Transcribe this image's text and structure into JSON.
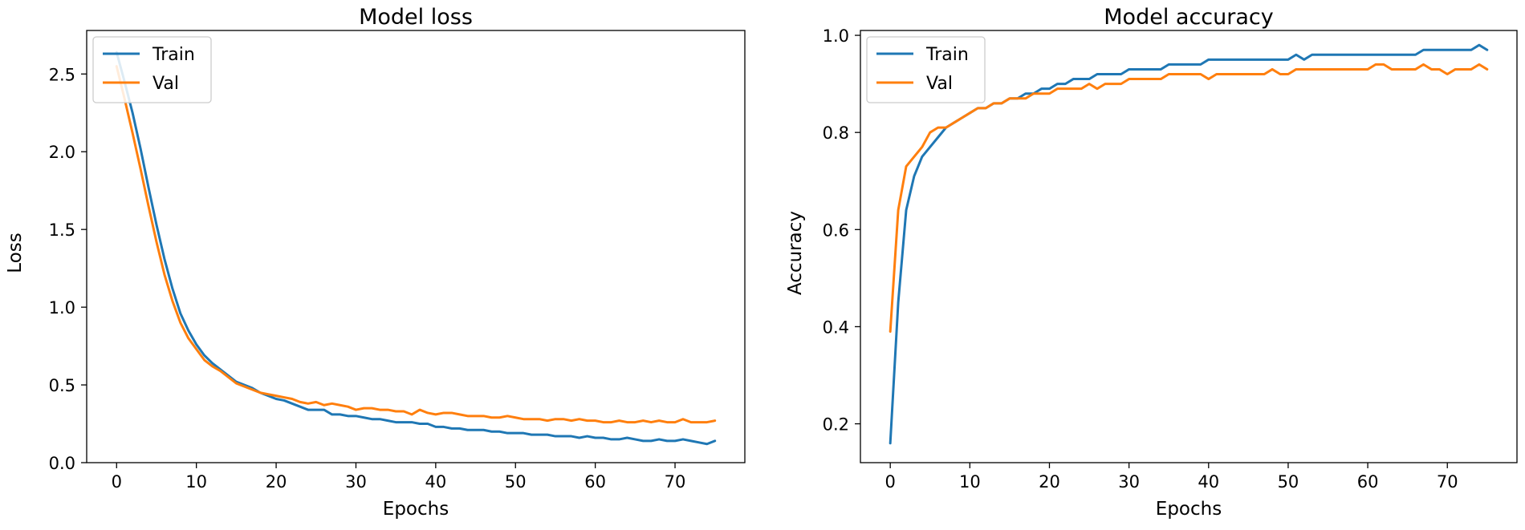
{
  "chart_data": [
    {
      "type": "line",
      "title": "Model loss",
      "xlabel": "Epochs",
      "ylabel": "Loss",
      "xlim": [
        -3.75,
        78.75
      ],
      "ylim": [
        0,
        2.78
      ],
      "xticks": [
        0,
        10,
        20,
        30,
        40,
        50,
        60,
        70
      ],
      "yticks": [
        0.0,
        0.5,
        1.0,
        1.5,
        2.0,
        2.5
      ],
      "xtick_labels": [
        "0",
        "10",
        "20",
        "30",
        "40",
        "50",
        "60",
        "70"
      ],
      "ytick_labels": [
        "0.0",
        "0.5",
        "1.0",
        "1.5",
        "2.0",
        "2.5"
      ],
      "legend_position": "upper left",
      "series": [
        {
          "name": "Train",
          "color": "#1f77b4",
          "values": [
            2.64,
            2.45,
            2.25,
            2.02,
            1.77,
            1.53,
            1.31,
            1.12,
            0.96,
            0.85,
            0.76,
            0.69,
            0.64,
            0.6,
            0.56,
            0.52,
            0.5,
            0.48,
            0.45,
            0.43,
            0.41,
            0.4,
            0.38,
            0.36,
            0.34,
            0.34,
            0.34,
            0.31,
            0.31,
            0.3,
            0.3,
            0.29,
            0.28,
            0.28,
            0.27,
            0.26,
            0.26,
            0.26,
            0.25,
            0.25,
            0.23,
            0.23,
            0.22,
            0.22,
            0.21,
            0.21,
            0.21,
            0.2,
            0.2,
            0.19,
            0.19,
            0.19,
            0.18,
            0.18,
            0.18,
            0.17,
            0.17,
            0.17,
            0.16,
            0.17,
            0.16,
            0.16,
            0.15,
            0.15,
            0.16,
            0.15,
            0.14,
            0.14,
            0.15,
            0.14,
            0.14,
            0.15,
            0.14,
            0.13,
            0.12,
            0.14
          ]
        },
        {
          "name": "Val",
          "color": "#ff7f0e",
          "values": [
            2.55,
            2.34,
            2.12,
            1.89,
            1.65,
            1.42,
            1.21,
            1.04,
            0.9,
            0.8,
            0.73,
            0.66,
            0.62,
            0.59,
            0.55,
            0.51,
            0.49,
            0.47,
            0.45,
            0.44,
            0.43,
            0.42,
            0.41,
            0.39,
            0.38,
            0.39,
            0.37,
            0.38,
            0.37,
            0.36,
            0.34,
            0.35,
            0.35,
            0.34,
            0.34,
            0.33,
            0.33,
            0.31,
            0.34,
            0.32,
            0.31,
            0.32,
            0.32,
            0.31,
            0.3,
            0.3,
            0.3,
            0.29,
            0.29,
            0.3,
            0.29,
            0.28,
            0.28,
            0.28,
            0.27,
            0.28,
            0.28,
            0.27,
            0.28,
            0.27,
            0.27,
            0.26,
            0.26,
            0.27,
            0.26,
            0.26,
            0.27,
            0.26,
            0.27,
            0.26,
            0.26,
            0.28,
            0.26,
            0.26,
            0.26,
            0.27
          ]
        }
      ]
    },
    {
      "type": "line",
      "title": "Model accuracy",
      "xlabel": "Epochs",
      "ylabel": "Accuracy",
      "xlim": [
        -3.75,
        78.75
      ],
      "ylim": [
        0.12,
        1.01
      ],
      "xticks": [
        0,
        10,
        20,
        30,
        40,
        50,
        60,
        70
      ],
      "yticks": [
        0.2,
        0.4,
        0.6,
        0.8,
        1.0
      ],
      "xtick_labels": [
        "0",
        "10",
        "20",
        "30",
        "40",
        "50",
        "60",
        "70"
      ],
      "ytick_labels": [
        "0.2",
        "0.4",
        "0.6",
        "0.8",
        "1.0"
      ],
      "legend_position": "upper left",
      "series": [
        {
          "name": "Train",
          "color": "#1f77b4",
          "values": [
            0.16,
            0.45,
            0.64,
            0.71,
            0.75,
            0.77,
            0.79,
            0.81,
            0.82,
            0.83,
            0.84,
            0.85,
            0.85,
            0.86,
            0.86,
            0.87,
            0.87,
            0.88,
            0.88,
            0.89,
            0.89,
            0.9,
            0.9,
            0.91,
            0.91,
            0.91,
            0.92,
            0.92,
            0.92,
            0.92,
            0.93,
            0.93,
            0.93,
            0.93,
            0.93,
            0.94,
            0.94,
            0.94,
            0.94,
            0.94,
            0.95,
            0.95,
            0.95,
            0.95,
            0.95,
            0.95,
            0.95,
            0.95,
            0.95,
            0.95,
            0.95,
            0.96,
            0.95,
            0.96,
            0.96,
            0.96,
            0.96,
            0.96,
            0.96,
            0.96,
            0.96,
            0.96,
            0.96,
            0.96,
            0.96,
            0.96,
            0.96,
            0.97,
            0.97,
            0.97,
            0.97,
            0.97,
            0.97,
            0.97,
            0.98,
            0.97
          ]
        },
        {
          "name": "Val",
          "color": "#ff7f0e",
          "values": [
            0.39,
            0.64,
            0.73,
            0.75,
            0.77,
            0.8,
            0.81,
            0.81,
            0.82,
            0.83,
            0.84,
            0.85,
            0.85,
            0.86,
            0.86,
            0.87,
            0.87,
            0.87,
            0.88,
            0.88,
            0.88,
            0.89,
            0.89,
            0.89,
            0.89,
            0.9,
            0.89,
            0.9,
            0.9,
            0.9,
            0.91,
            0.91,
            0.91,
            0.91,
            0.91,
            0.92,
            0.92,
            0.92,
            0.92,
            0.92,
            0.91,
            0.92,
            0.92,
            0.92,
            0.92,
            0.92,
            0.92,
            0.92,
            0.93,
            0.92,
            0.92,
            0.93,
            0.93,
            0.93,
            0.93,
            0.93,
            0.93,
            0.93,
            0.93,
            0.93,
            0.93,
            0.94,
            0.94,
            0.93,
            0.93,
            0.93,
            0.93,
            0.94,
            0.93,
            0.93,
            0.92,
            0.93,
            0.93,
            0.93,
            0.94,
            0.93
          ]
        }
      ]
    }
  ]
}
